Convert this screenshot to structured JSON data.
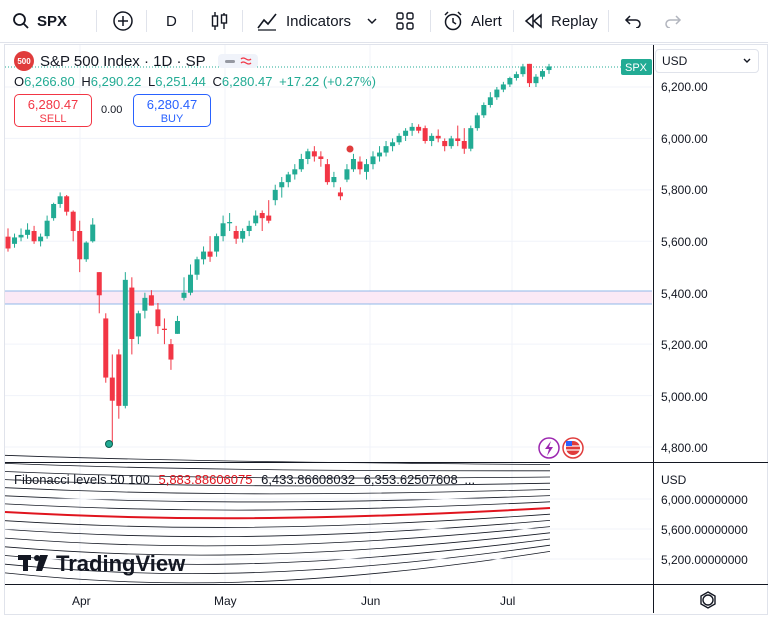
{
  "toolbar": {
    "symbol": "SPX",
    "interval": "D",
    "indicators_label": "Indicators",
    "alert_label": "Alert",
    "replay_label": "Replay"
  },
  "legend": {
    "badge": "500",
    "title": "S&P 500 Index · 1D · SP",
    "ohlc": {
      "o_key": "O",
      "o": "6,266.80",
      "h_key": "H",
      "h": "6,290.22",
      "l_key": "L",
      "l": "6,251.44",
      "c_key": "C",
      "c": "6,280.47",
      "change": "+17.22 (+0.27%)"
    }
  },
  "trade": {
    "sell_price": "6,280.47",
    "sell_label": "SELL",
    "spread": "0.00",
    "buy_price": "6,280.47",
    "buy_label": "BUY"
  },
  "price_scale": {
    "currency": "USD",
    "last_label": "SPX",
    "labels": [
      "6,200.00",
      "6,000.00",
      "5,800.00",
      "5,600.00",
      "5,400.00",
      "5,200.00",
      "5,000.00",
      "4,800.00"
    ]
  },
  "indicator": {
    "name": "Fibonacci levels 50 100",
    "value1": "5,883.88606075",
    "value2": "6,433.86608032",
    "value3": "6,353.62507608",
    "ellipsis": "...",
    "currency": "USD",
    "labels": [
      "6,000.00000000",
      "5,600.00000000",
      "5,200.00000000"
    ]
  },
  "watermark": "TradingView",
  "time_axis": [
    "Apr",
    "May",
    "Jun",
    "Jul"
  ],
  "colors": {
    "up": "#22ab94",
    "down": "#f23645",
    "accent": "#2962ff",
    "fib_main": "#e0141e"
  },
  "chart_data": {
    "type": "candlestick",
    "y_min": 4800,
    "y_max": 6200,
    "candles": [
      [
        5618,
        5650,
        5560,
        5572
      ],
      [
        5590,
        5630,
        5575,
        5615
      ],
      [
        5615,
        5650,
        5600,
        5625
      ],
      [
        5625,
        5670,
        5610,
        5645
      ],
      [
        5640,
        5660,
        5590,
        5600
      ],
      [
        5600,
        5630,
        5580,
        5618
      ],
      [
        5620,
        5700,
        5610,
        5680
      ],
      [
        5690,
        5750,
        5680,
        5745
      ],
      [
        5745,
        5790,
        5730,
        5775
      ],
      [
        5775,
        5780,
        5700,
        5715
      ],
      [
        5715,
        5720,
        5600,
        5640
      ],
      [
        5640,
        5680,
        5480,
        5530
      ],
      [
        5530,
        5600,
        5520,
        5595
      ],
      [
        5600,
        5690,
        5595,
        5665
      ],
      [
        5480,
        5480,
        5320,
        5390
      ],
      [
        5300,
        5320,
        5050,
        5070
      ],
      [
        5070,
        5160,
        4810,
        4980
      ],
      [
        5160,
        5180,
        4910,
        4960
      ],
      [
        4960,
        5480,
        4950,
        5450
      ],
      [
        5420,
        5460,
        5160,
        5220
      ],
      [
        5230,
        5330,
        5200,
        5320
      ],
      [
        5330,
        5400,
        5300,
        5380
      ],
      [
        5390,
        5410,
        5350,
        5350
      ],
      [
        5335,
        5360,
        5240,
        5270
      ],
      [
        5260,
        5300,
        5200,
        5255
      ],
      [
        5200,
        5220,
        5100,
        5140
      ],
      [
        5240,
        5310,
        5240,
        5290
      ],
      [
        5380,
        5460,
        5370,
        5400
      ],
      [
        5400,
        5510,
        5390,
        5470
      ],
      [
        5470,
        5540,
        5450,
        5530
      ],
      [
        5530,
        5580,
        5510,
        5560
      ],
      [
        5560,
        5620,
        5520,
        5540
      ],
      [
        5560,
        5630,
        5540,
        5620
      ],
      [
        5620,
        5700,
        5600,
        5670
      ],
      [
        5670,
        5710,
        5640,
        5675
      ],
      [
        5640,
        5660,
        5590,
        5610
      ],
      [
        5610,
        5650,
        5595,
        5640
      ],
      [
        5640,
        5680,
        5620,
        5660
      ],
      [
        5670,
        5720,
        5660,
        5700
      ],
      [
        5710,
        5720,
        5640,
        5690
      ],
      [
        5700,
        5760,
        5670,
        5680
      ],
      [
        5760,
        5820,
        5740,
        5800
      ],
      [
        5810,
        5850,
        5770,
        5830
      ],
      [
        5830,
        5870,
        5810,
        5860
      ],
      [
        5860,
        5900,
        5840,
        5880
      ],
      [
        5880,
        5940,
        5870,
        5920
      ],
      [
        5920,
        5960,
        5900,
        5950
      ],
      [
        5950,
        5970,
        5910,
        5930
      ],
      [
        5930,
        5950,
        5890,
        5920
      ],
      [
        5900,
        5920,
        5820,
        5830
      ],
      [
        5830,
        5870,
        5810,
        5850
      ],
      [
        5790,
        5810,
        5760,
        5775
      ],
      [
        5840,
        5900,
        5830,
        5880
      ],
      [
        5880,
        5940,
        5870,
        5920
      ],
      [
        5910,
        5930,
        5860,
        5880
      ],
      [
        5870,
        5920,
        5840,
        5900
      ],
      [
        5900,
        5950,
        5880,
        5930
      ],
      [
        5930,
        5970,
        5910,
        5945
      ],
      [
        5945,
        5990,
        5930,
        5970
      ],
      [
        5970,
        6000,
        5950,
        5985
      ],
      [
        5985,
        6020,
        5975,
        6010
      ],
      [
        6010,
        6040,
        5990,
        6030
      ],
      [
        6030,
        6060,
        6010,
        6045
      ],
      [
        6045,
        6055,
        6020,
        6030
      ],
      [
        6040,
        6050,
        5980,
        5990
      ],
      [
        5990,
        6020,
        5970,
        6010
      ],
      [
        6010,
        6035,
        5985,
        6000
      ],
      [
        5990,
        6000,
        5950,
        5970
      ],
      [
        5970,
        6010,
        5960,
        6000
      ],
      [
        6000,
        6050,
        5970,
        5990
      ],
      [
        5990,
        6040,
        5940,
        5960
      ],
      [
        5960,
        6050,
        5950,
        6040
      ],
      [
        6040,
        6100,
        6030,
        6090
      ],
      [
        6090,
        6140,
        6080,
        6130
      ],
      [
        6130,
        6180,
        6120,
        6160
      ],
      [
        6160,
        6200,
        6150,
        6190
      ],
      [
        6190,
        6220,
        6180,
        6210
      ],
      [
        6210,
        6240,
        6200,
        6235
      ],
      [
        6235,
        6260,
        6225,
        6250
      ],
      [
        6250,
        6290,
        6240,
        6280
      ],
      [
        6290,
        6290,
        6200,
        6215
      ],
      [
        6215,
        6250,
        6200,
        6240
      ],
      [
        6240,
        6270,
        6230,
        6262
      ],
      [
        6266,
        6290,
        6251,
        6280
      ]
    ]
  }
}
